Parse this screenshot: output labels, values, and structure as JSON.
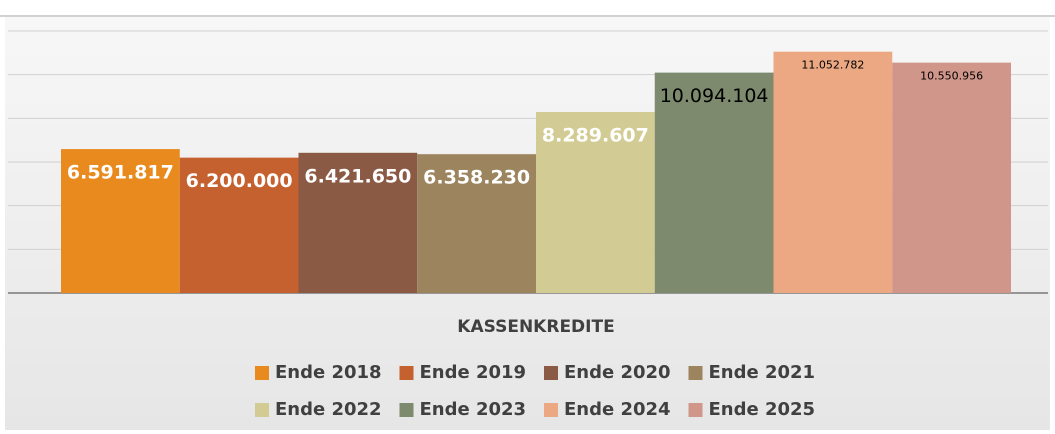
{
  "chart_data": {
    "type": "bar",
    "categories": [
      "KASSENKREDITE"
    ],
    "series": [
      {
        "name": "Ende 2018",
        "color": "#e98a1e",
        "label_color": "#ffffff",
        "values": [
          6591817
        ],
        "value_labels": [
          "6.591.817"
        ]
      },
      {
        "name": "Ende 2019",
        "color": "#c5602f",
        "label_color": "#ffffff",
        "values": [
          6200000
        ],
        "value_labels": [
          "6.200.000"
        ]
      },
      {
        "name": "Ende 2020",
        "color": "#8b5a45",
        "label_color": "#ffffff",
        "values": [
          6421650
        ],
        "value_labels": [
          "6.421.650"
        ]
      },
      {
        "name": "Ende 2021",
        "color": "#9b845e",
        "label_color": "#ffffff",
        "values": [
          6358230
        ],
        "value_labels": [
          "6.358.230"
        ]
      },
      {
        "name": "Ende 2022",
        "color": "#d2cc94",
        "label_color": "#ffffff",
        "values": [
          8289607
        ],
        "value_labels": [
          "8.289.607"
        ]
      },
      {
        "name": "Ende 2023",
        "color": "#7d8a6e",
        "label_color": "#000000",
        "values": [
          10094104
        ],
        "value_labels": [
          "10.094.104"
        ]
      },
      {
        "name": "Ende 2024",
        "color": "#eca882",
        "label_color": "#000000",
        "values": [
          11052782
        ],
        "value_labels": [
          "11.052.782"
        ]
      },
      {
        "name": "Ende 2025",
        "color": "#d0968a",
        "label_color": "#000000",
        "values": [
          10550956
        ],
        "value_labels": [
          "10.550.956"
        ]
      }
    ],
    "ylim": [
      0,
      12000000
    ],
    "yticks": [
      0,
      2000000,
      4000000,
      6000000,
      8000000,
      10000000,
      12000000
    ],
    "grid": true,
    "legend": "bottom"
  }
}
